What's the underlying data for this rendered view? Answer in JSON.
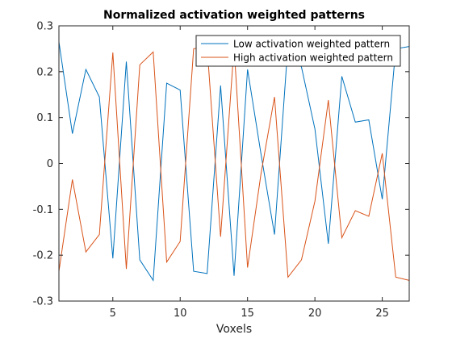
{
  "chart_data": {
    "type": "line",
    "title": "Normalized activation weighted patterns",
    "xlabel": "Voxels",
    "ylabel": "",
    "xlim": [
      1,
      27
    ],
    "ylim": [
      -0.3,
      0.3
    ],
    "xticks": [
      5,
      10,
      15,
      20,
      25
    ],
    "yticks": [
      -0.3,
      -0.2,
      -0.1,
      0,
      0.1,
      0.2,
      0.3
    ],
    "xtick_labels": [
      "5",
      "10",
      "15",
      "20",
      "25"
    ],
    "ytick_labels": [
      "-0.3",
      "-0.2",
      "-0.1",
      "0",
      "0.1",
      "0.2",
      "0.3"
    ],
    "grid": false,
    "legend_position": "top-right",
    "x": [
      1,
      2,
      3,
      4,
      5,
      6,
      7,
      8,
      9,
      10,
      11,
      12,
      13,
      14,
      15,
      16,
      17,
      18,
      19,
      20,
      21,
      22,
      23,
      24,
      25,
      26,
      27
    ],
    "series": [
      {
        "name": "Low activation weighted pattern",
        "color": "#0072BD",
        "values": [
          0.265,
          0.065,
          0.205,
          0.145,
          -0.207,
          0.222,
          -0.21,
          -0.255,
          0.175,
          0.16,
          -0.235,
          -0.24,
          0.17,
          -0.245,
          0.205,
          0.02,
          -0.155,
          0.26,
          0.21,
          0.075,
          -0.175,
          0.19,
          0.09,
          0.095,
          -0.078,
          0.25,
          0.255
        ]
      },
      {
        "name": "High activation weighted pattern",
        "color": "#D95319",
        "values": [
          -0.235,
          -0.035,
          -0.193,
          -0.155,
          0.242,
          -0.23,
          0.215,
          0.243,
          -0.215,
          -0.17,
          0.25,
          0.255,
          -0.16,
          0.255,
          -0.227,
          -0.022,
          0.145,
          -0.248,
          -0.21,
          -0.082,
          0.138,
          -0.162,
          -0.103,
          -0.115,
          0.022,
          -0.248,
          -0.255
        ]
      }
    ]
  }
}
